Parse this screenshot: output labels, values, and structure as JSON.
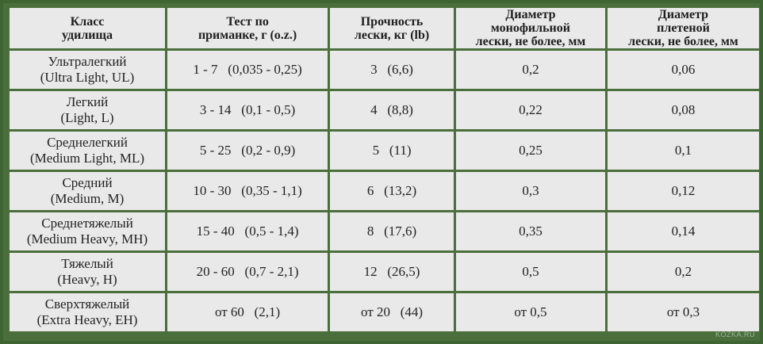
{
  "table": {
    "headers": [
      [
        "Класс",
        "удилища"
      ],
      [
        "Тест по",
        "приманке, г (o.z.)"
      ],
      [
        "Прочность",
        "лески, кг (lb)"
      ],
      [
        "Диаметр",
        "монофильной",
        "лески, не более, мм"
      ],
      [
        "Диаметр",
        "плетеной",
        "лески, не более, мм"
      ]
    ],
    "rows": [
      {
        "class_ru": "Ультралегкий",
        "class_en": "(Ultra Light, UL)",
        "lure_test": "1 - 7   (0,035 - 0,25)",
        "line_strength": "3   (6,6)",
        "mono_diameter": "0,2",
        "braid_diameter": "0,06"
      },
      {
        "class_ru": "Легкий",
        "class_en": "(Light, L)",
        "lure_test": "3 - 14   (0,1 - 0,5)",
        "line_strength": "4   (8,8)",
        "mono_diameter": "0,22",
        "braid_diameter": "0,08"
      },
      {
        "class_ru": "Среднелегкий",
        "class_en": "(Medium Light, ML)",
        "lure_test": "5 - 25   (0,2 - 0,9)",
        "line_strength": "5   (11)",
        "mono_diameter": "0,25",
        "braid_diameter": "0,1"
      },
      {
        "class_ru": "Средний",
        "class_en": "(Medium, M)",
        "lure_test": "10 - 30   (0,35 - 1,1)",
        "line_strength": "6   (13,2)",
        "mono_diameter": "0,3",
        "braid_diameter": "0,12"
      },
      {
        "class_ru": "Среднетяжелый",
        "class_en": "(Medium Heavy, MH)",
        "lure_test": "15 - 40   (0,5 - 1,4)",
        "line_strength": "8   (17,6)",
        "mono_diameter": "0,35",
        "braid_diameter": "0,14"
      },
      {
        "class_ru": "Тяжелый",
        "class_en": "(Heavy, H)",
        "lure_test": "20 - 60   (0,7 - 2,1)",
        "line_strength": "12   (26,5)",
        "mono_diameter": "0,5",
        "braid_diameter": "0,2"
      },
      {
        "class_ru": "Сверхтяжелый",
        "class_en": "(Extra Heavy, EH)",
        "lure_test": "от 60   (2,1)",
        "line_strength": "от 20   (44)",
        "mono_diameter": "от 0,5",
        "braid_diameter": "от 0,3"
      }
    ]
  },
  "watermark": "KOZKA.RU",
  "colors": {
    "frame": "#4a6e3c",
    "cell_background": "#e9e9e9",
    "text": "#222222"
  }
}
